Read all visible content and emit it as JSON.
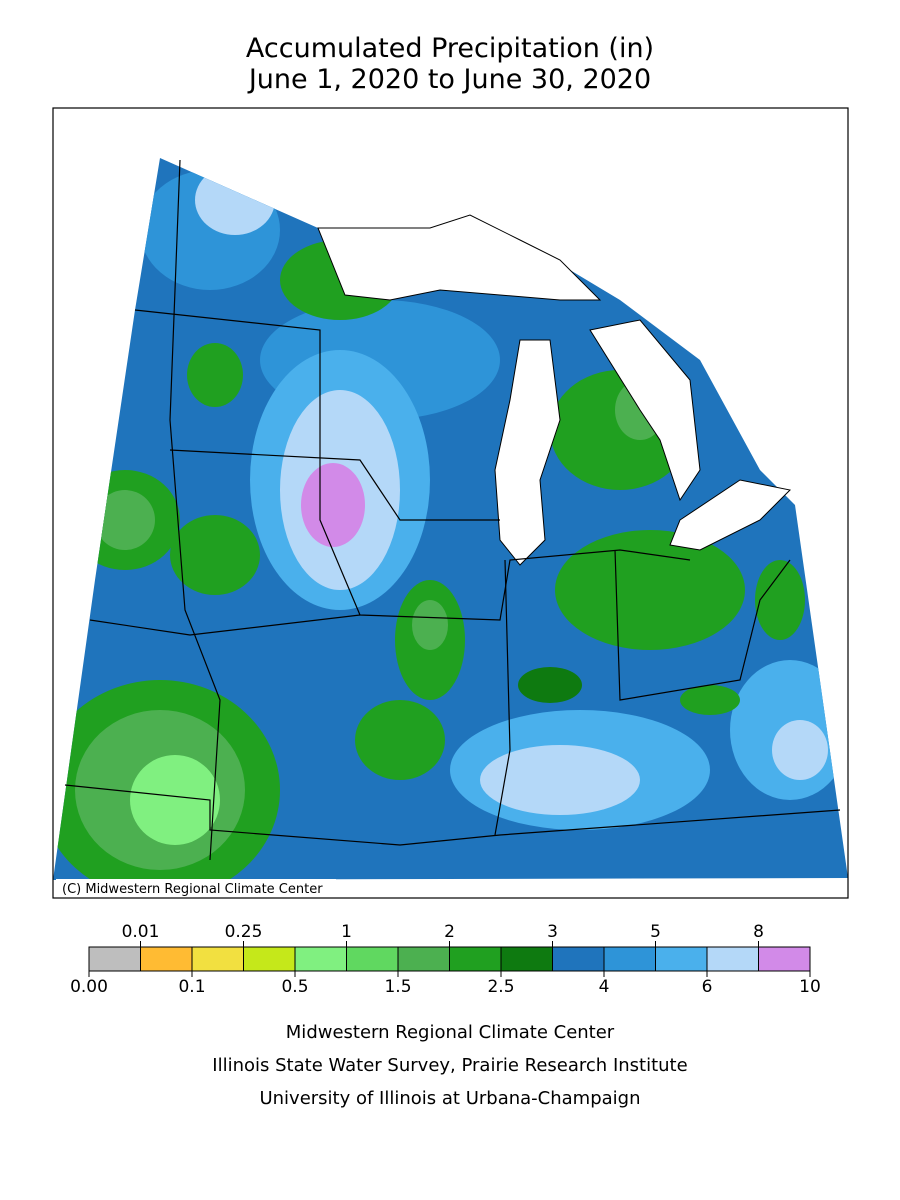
{
  "title": [
    "Accumulated Precipitation (in)",
    "June 1, 2020 to June 30, 2020"
  ],
  "copyright": "(C) Midwestern Regional Climate Center",
  "legend": {
    "labels": [
      "0.00",
      "0.01",
      "0.1",
      "0.25",
      "0.5",
      "1",
      "1.5",
      "2",
      "2.5",
      "3",
      "4",
      "5",
      "6",
      "8",
      "10"
    ],
    "colors": [
      "#bebebe",
      "#ffbb33",
      "#f2e040",
      "#c5e81a",
      "#80f080",
      "#60d860",
      "#4cb050",
      "#20a020",
      "#0e7a10",
      "#1f74bc",
      "#2e94d8",
      "#4ab0ec",
      "#b4d8f8",
      "#d28ae8"
    ]
  },
  "footer": [
    "Midwestern Regional Climate Center",
    "Illinois State Water Survey, Prairie Research Institute",
    "University of Illinois at Urbana-Champaign"
  ]
}
